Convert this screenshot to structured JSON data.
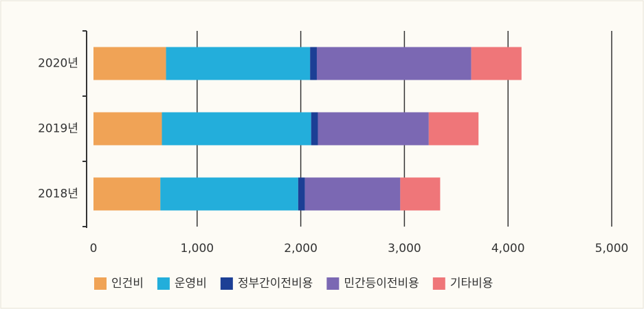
{
  "chart_data": {
    "type": "stacked_barh",
    "categories": [
      "2020년",
      "2019년",
      "2018년"
    ],
    "series": [
      {
        "name": "인건비",
        "color": "#f0a356",
        "values": [
          700,
          660,
          645
        ]
      },
      {
        "name": "운영비",
        "color": "#23aedb",
        "values": [
          1390,
          1440,
          1330
        ]
      },
      {
        "name": "정부간이전비용",
        "color": "#1c3f95",
        "values": [
          65,
          65,
          65
        ]
      },
      {
        "name": "민간등이전비용",
        "color": "#7b68b3",
        "values": [
          1490,
          1070,
          920
        ]
      },
      {
        "name": "기타비용",
        "color": "#ef7679",
        "values": [
          485,
          480,
          385
        ]
      }
    ],
    "xlim": [
      0,
      5000
    ],
    "xticks": [
      0,
      {
        "value": 1000,
        "label": "1,000"
      },
      {
        "value": 2000,
        "label": "2,000"
      },
      {
        "value": 3000,
        "label": "3,000"
      },
      {
        "value": 4000,
        "label": "4,000"
      },
      {
        "value": 5000,
        "label": "5,000"
      }
    ],
    "grid": true,
    "legend": "bottom"
  }
}
